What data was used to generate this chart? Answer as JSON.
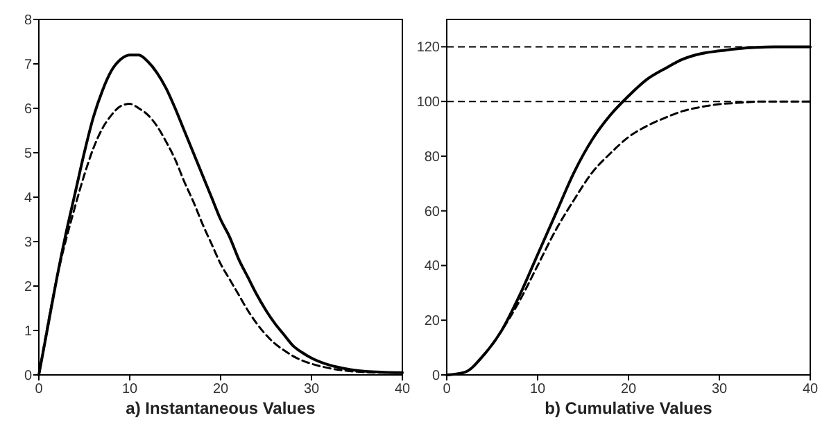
{
  "chart_data": [
    {
      "type": "line",
      "title": "a) Instantaneous Values",
      "xlim": [
        0,
        40
      ],
      "ylim": [
        0,
        8
      ],
      "xticks": [
        0,
        10,
        20,
        30,
        40
      ],
      "yticks": [
        0,
        1,
        2,
        3,
        4,
        5,
        6,
        7,
        8
      ],
      "grid": false,
      "series": [
        {
          "color": "#000000",
          "line_style": "solid",
          "x": [
            0,
            1,
            2,
            3,
            4,
            5,
            6,
            7,
            8,
            9,
            10,
            11,
            12,
            13,
            14,
            15,
            16,
            17,
            18,
            19,
            20,
            21,
            22,
            23,
            24,
            25,
            26,
            27,
            28,
            29,
            30,
            32,
            34,
            36,
            38,
            40
          ],
          "values": [
            0,
            1.1,
            2.2,
            3.2,
            4.1,
            5.0,
            5.8,
            6.4,
            6.85,
            7.1,
            7.2,
            7.2,
            7.05,
            6.8,
            6.45,
            6.0,
            5.5,
            5.0,
            4.5,
            4.0,
            3.5,
            3.1,
            2.6,
            2.2,
            1.8,
            1.45,
            1.15,
            0.9,
            0.65,
            0.5,
            0.38,
            0.22,
            0.13,
            0.08,
            0.06,
            0.05
          ]
        },
        {
          "color": "#000000",
          "line_style": "dashed",
          "x": [
            0,
            2,
            4,
            5,
            6,
            7,
            8,
            9,
            10,
            11,
            12,
            13,
            14,
            15,
            16,
            17,
            18,
            19,
            20,
            21,
            22,
            23,
            24,
            25,
            26,
            27,
            28,
            30,
            32,
            34,
            36,
            38,
            40
          ],
          "values": [
            0,
            2.2,
            3.8,
            4.5,
            5.1,
            5.55,
            5.85,
            6.05,
            6.1,
            6.0,
            5.85,
            5.6,
            5.25,
            4.85,
            4.35,
            3.9,
            3.4,
            2.95,
            2.5,
            2.15,
            1.8,
            1.45,
            1.15,
            0.9,
            0.7,
            0.55,
            0.42,
            0.25,
            0.15,
            0.09,
            0.06,
            0.05,
            0.05
          ]
        }
      ]
    },
    {
      "type": "line",
      "title": "b) Cumulative Values",
      "xlim": [
        0,
        40
      ],
      "ylim": [
        0,
        130
      ],
      "xticks": [
        0,
        10,
        20,
        30,
        40
      ],
      "yticks": [
        0,
        20,
        40,
        60,
        80,
        100,
        120
      ],
      "grid": false,
      "ref_lines": [
        {
          "axis": "y",
          "value": 120,
          "line_style": "dashed"
        },
        {
          "axis": "y",
          "value": 100,
          "line_style": "dashed"
        }
      ],
      "series": [
        {
          "color": "#000000",
          "line_style": "solid",
          "x": [
            0,
            2,
            4,
            6,
            8,
            10,
            12,
            14,
            16,
            18,
            20,
            22,
            24,
            26,
            28,
            30,
            32,
            34,
            36,
            40
          ],
          "values": [
            0,
            1,
            7,
            16,
            29,
            44,
            59,
            74,
            86,
            95,
            102,
            108,
            112,
            115.5,
            117.5,
            118.5,
            119.3,
            119.8,
            120,
            120
          ]
        },
        {
          "color": "#000000",
          "line_style": "dashed",
          "x": [
            0,
            2,
            4,
            6,
            8,
            10,
            12,
            14,
            16,
            18,
            20,
            22,
            24,
            26,
            28,
            30,
            32,
            35,
            40
          ],
          "values": [
            0,
            1,
            7,
            16,
            27,
            40,
            53,
            64,
            74,
            81,
            87,
            91,
            94,
            96.5,
            98,
            99,
            99.5,
            100,
            100
          ]
        }
      ]
    }
  ]
}
